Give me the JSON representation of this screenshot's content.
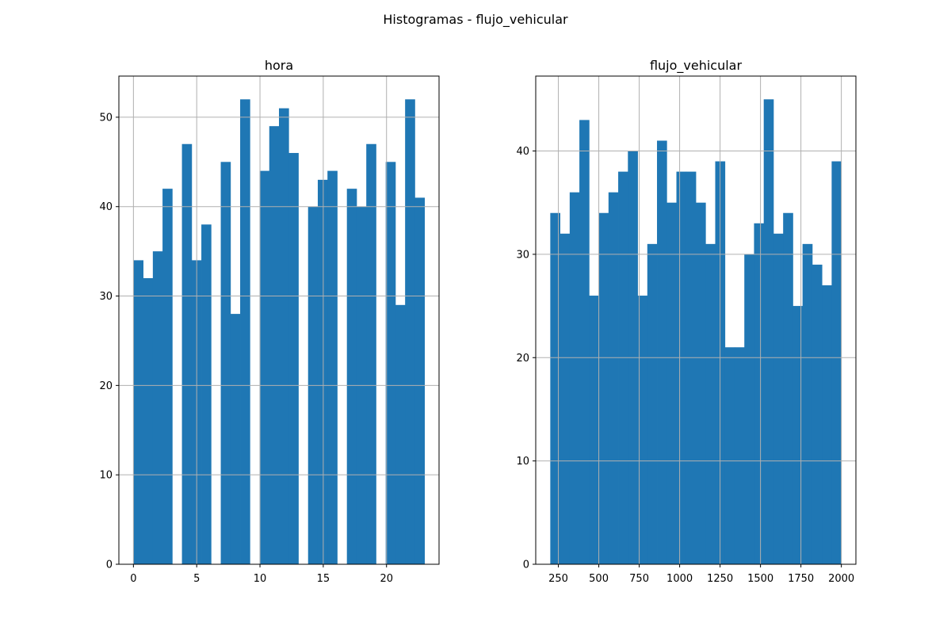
{
  "figure": {
    "title": "Histogramas - flujo_vehicular"
  },
  "colors": {
    "bar": "#1f77b4",
    "grid": "#b0b0b0",
    "axis": "#000000",
    "background": "#ffffff"
  },
  "chart_data": [
    {
      "type": "bar",
      "title": "hora",
      "xlabel": "",
      "ylabel": "",
      "grid": true,
      "xlim": [
        -1.15,
        24.15
      ],
      "ylim": [
        0,
        54.6
      ],
      "xticks": [
        0,
        5,
        10,
        15,
        20
      ],
      "xtick_labels": [
        "0",
        "5",
        "10",
        "15",
        "20"
      ],
      "yticks": [
        0,
        10,
        20,
        30,
        40,
        50
      ],
      "ytick_labels": [
        "0",
        "10",
        "20",
        "30",
        "40",
        "50"
      ],
      "bin_start": 0,
      "bin_width": 0.7667,
      "values": [
        34,
        32,
        35,
        42,
        0,
        47,
        34,
        38,
        0,
        45,
        28,
        52,
        0,
        44,
        49,
        51,
        46,
        0,
        40,
        43,
        44,
        0,
        42,
        40,
        47,
        0,
        45,
        29,
        52,
        41
      ]
    },
    {
      "type": "bar",
      "title": "flujo_vehicular",
      "xlabel": "",
      "ylabel": "",
      "grid": true,
      "xlim": [
        110,
        2090
      ],
      "ylim": [
        0,
        47.25
      ],
      "xticks": [
        250,
        500,
        750,
        1000,
        1250,
        1500,
        1750,
        2000
      ],
      "xtick_labels": [
        "250",
        "500",
        "750",
        "1000",
        "1250",
        "1500",
        "1750",
        "2000"
      ],
      "yticks": [
        0,
        10,
        20,
        30,
        40
      ],
      "ytick_labels": [
        "0",
        "10",
        "20",
        "30",
        "40"
      ],
      "bin_start": 200,
      "bin_width": 60,
      "values": [
        34,
        32,
        36,
        43,
        26,
        34,
        36,
        38,
        40,
        26,
        31,
        41,
        35,
        38,
        38,
        35,
        31,
        39,
        21,
        21,
        30,
        33,
        45,
        32,
        34,
        25,
        31,
        29,
        27,
        39
      ]
    }
  ]
}
